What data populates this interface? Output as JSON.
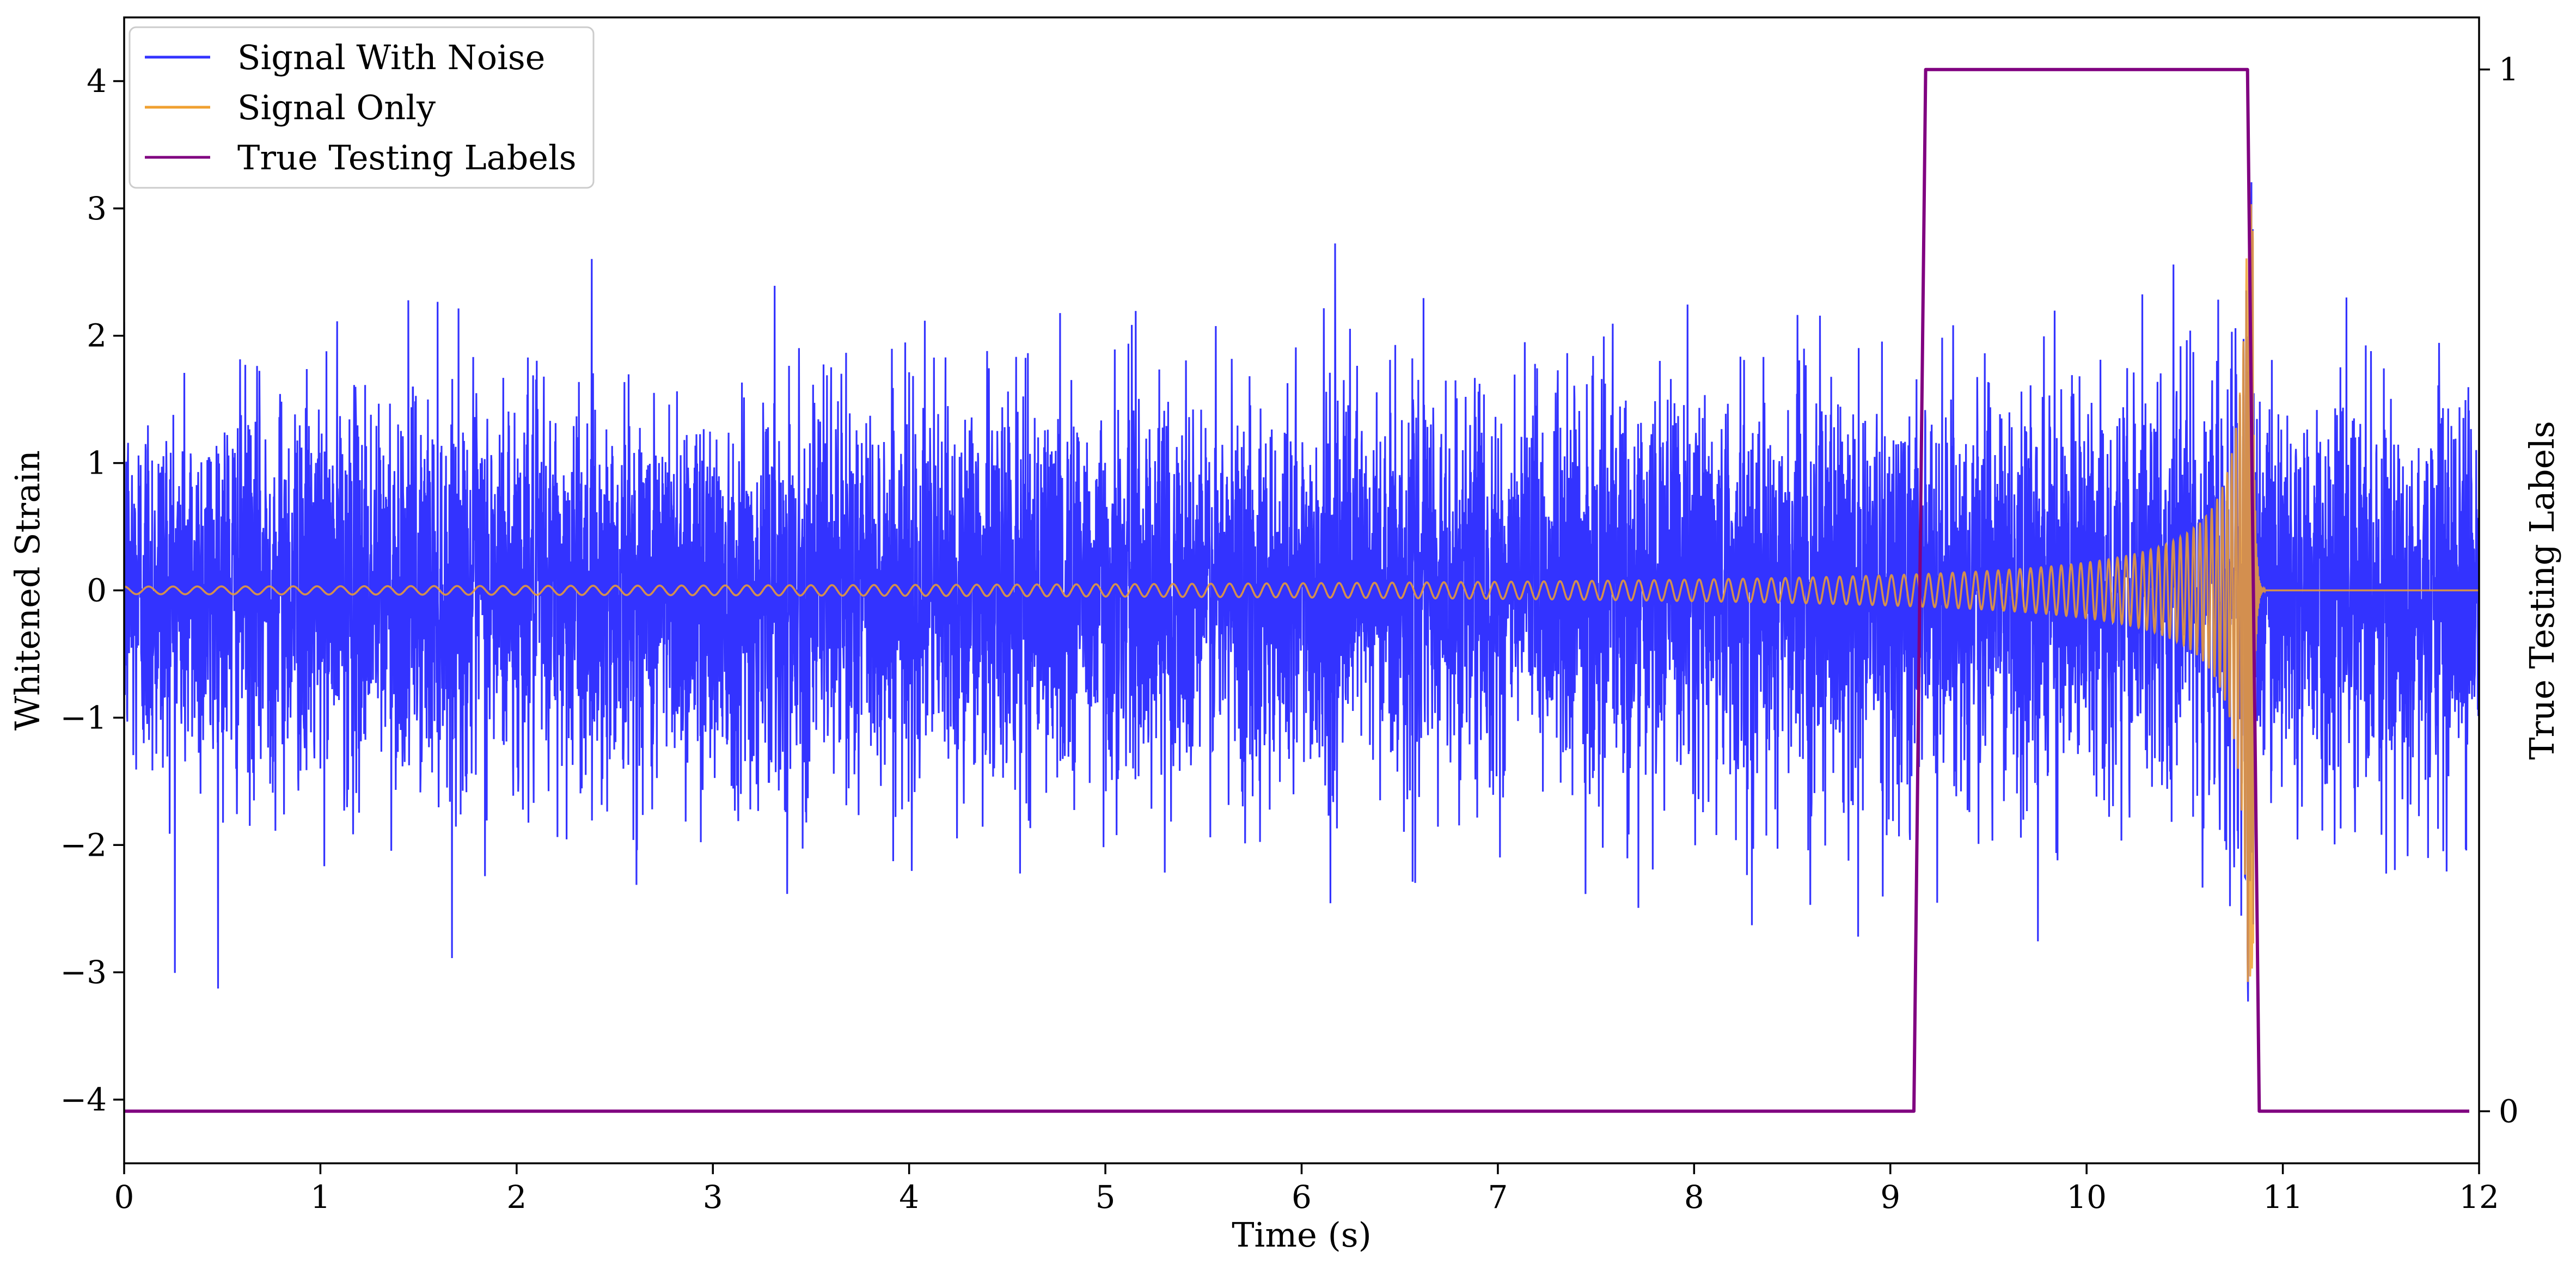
{
  "chart_data": {
    "type": "line",
    "title": "",
    "xlabel": "Time (s)",
    "ylabel": "Whitened Strain",
    "y2label": "True Testing Labels",
    "xlim": [
      0,
      12
    ],
    "ylim": [
      -4.5,
      4.5
    ],
    "y2lim": [
      -0.05,
      1.05
    ],
    "x_ticks": [
      0,
      1,
      2,
      3,
      4,
      5,
      6,
      7,
      8,
      9,
      10,
      11,
      12
    ],
    "y_ticks": [
      -4,
      -3,
      -2,
      -1,
      0,
      1,
      2,
      3,
      4
    ],
    "y_tick_labels": [
      "−4",
      "−3",
      "−2",
      "−1",
      "0",
      "1",
      "2",
      "3",
      "4"
    ],
    "y2_ticks": [
      0,
      1
    ],
    "y2_tick_labels": [
      "0",
      "1"
    ],
    "grid": false,
    "legend_position": "upper-left",
    "legend": [
      "Signal With Noise",
      "Signal Only",
      "True Testing Labels"
    ],
    "series": [
      {
        "name": "Signal With Noise",
        "color": "#3333ff",
        "axis": "left",
        "description_values": {
          "noise_std": 0.75,
          "typical_range": [
            -3.5,
            3.8
          ]
        }
      },
      {
        "name": "Signal Only",
        "color": "#f0a030",
        "axis": "left",
        "chirp": {
          "start_time": 0.0,
          "merger_time": 10.85,
          "start_amplitude": 0.03,
          "peak_amplitude": 3.1,
          "start_frequency_hz": 8,
          "after_merger_value": 0.0
        }
      },
      {
        "name": "True Testing Labels",
        "color": "#800080",
        "axis": "right",
        "x": [
          0,
          9.12,
          9.18,
          10.82,
          10.88,
          11.95
        ],
        "y": [
          0,
          0,
          1,
          1,
          0,
          0
        ]
      }
    ]
  }
}
